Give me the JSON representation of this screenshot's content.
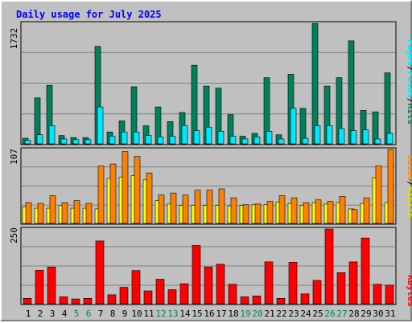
{
  "title": "Daily usage for July 2025",
  "colors": {
    "pages": "#00805c",
    "files": "#00e8ff",
    "hits": "#00805c",
    "sites": "#ff8000",
    "visits": "#ffff00",
    "kbytes": "#ff0000",
    "weekend_day": "#00805c",
    "weekday_day": "#000000",
    "title": "#0000ff"
  },
  "chart_data": [
    {
      "type": "bar",
      "name": "hits-files-pages",
      "ymax_label": "1732",
      "ymax": 1732,
      "legend": [
        "Pages",
        "Files",
        "Hits"
      ],
      "categories": [
        "1",
        "2",
        "3",
        "4",
        "5",
        "6",
        "7",
        "8",
        "9",
        "10",
        "11",
        "12",
        "13",
        "14",
        "15",
        "16",
        "17",
        "18",
        "19",
        "20",
        "21",
        "22",
        "23",
        "24",
        "25",
        "26",
        "27",
        "28",
        "29",
        "30",
        "31"
      ],
      "series": [
        {
          "name": "Hits",
          "values": [
            80,
            660,
            840,
            120,
            90,
            90,
            1400,
            170,
            330,
            820,
            260,
            530,
            320,
            450,
            1130,
            830,
            800,
            420,
            110,
            150,
            950,
            130,
            1000,
            510,
            1730,
            830,
            950,
            1480,
            480,
            460,
            1020
          ]
        },
        {
          "name": "Files",
          "values": [
            50,
            130,
            260,
            70,
            60,
            60,
            530,
            110,
            170,
            170,
            120,
            100,
            110,
            260,
            190,
            240,
            180,
            110,
            70,
            100,
            180,
            70,
            510,
            80,
            260,
            260,
            220,
            190,
            200,
            70,
            150
          ]
        },
        {
          "name": "Pages",
          "values": [
            40,
            60,
            40,
            40,
            40,
            40,
            70,
            50,
            50,
            50,
            40,
            40,
            40,
            50,
            60,
            60,
            50,
            40,
            40,
            40,
            60,
            40,
            60,
            40,
            60,
            60,
            40,
            60,
            60,
            30,
            60
          ]
        }
      ]
    },
    {
      "type": "bar",
      "name": "sites-visits",
      "ymax_label": "107",
      "ymax": 107,
      "legend": [
        "Sites",
        "Visits"
      ],
      "categories": [
        "1",
        "2",
        "3",
        "4",
        "5",
        "6",
        "7",
        "8",
        "9",
        "10",
        "11",
        "12",
        "13",
        "14",
        "15",
        "16",
        "17",
        "18",
        "19",
        "20",
        "21",
        "22",
        "23",
        "24",
        "25",
        "26",
        "27",
        "28",
        "29",
        "30",
        "31"
      ],
      "series": [
        {
          "name": "Visits",
          "values": [
            24,
            22,
            22,
            26,
            22,
            22,
            21,
            65,
            67,
            69,
            63,
            33,
            28,
            26,
            26,
            26,
            26,
            25,
            26,
            27,
            27,
            31,
            29,
            26,
            30,
            28,
            30,
            21,
            29,
            66,
            30
          ]
        },
        {
          "name": "Sites",
          "values": [
            30,
            29,
            40,
            30,
            33,
            29,
            83,
            86,
            104,
            97,
            73,
            41,
            44,
            41,
            48,
            48,
            50,
            37,
            27,
            28,
            32,
            40,
            37,
            30,
            34,
            32,
            39,
            20,
            37,
            83,
            107
          ]
        }
      ]
    },
    {
      "type": "bar",
      "name": "kbytes",
      "ymax_label": "250",
      "ymax": 250,
      "legend": [
        "KBytes"
      ],
      "categories": [
        "1",
        "2",
        "3",
        "4",
        "5",
        "6",
        "7",
        "8",
        "9",
        "10",
        "11",
        "12",
        "13",
        "14",
        "15",
        "16",
        "17",
        "18",
        "19",
        "20",
        "21",
        "22",
        "23",
        "24",
        "25",
        "26",
        "27",
        "28",
        "29",
        "30",
        "31"
      ],
      "series": [
        {
          "name": "KBytes",
          "values": [
            18,
            112,
            123,
            23,
            16,
            18,
            210,
            30,
            55,
            111,
            43,
            82,
            47,
            67,
            195,
            123,
            132,
            65,
            23,
            26,
            140,
            18,
            139,
            33,
            78,
            250,
            104,
            140,
            220,
            65,
            62
          ]
        }
      ]
    }
  ],
  "x_labels": [
    "1",
    "2",
    "3",
    "4",
    "5",
    "6",
    "7",
    "8",
    "9",
    "10",
    "11",
    "12",
    "13",
    "14",
    "15",
    "16",
    "17",
    "18",
    "19",
    "20",
    "21",
    "22",
    "23",
    "24",
    "25",
    "26",
    "27",
    "28",
    "29",
    "30",
    "31"
  ],
  "weekend_days": [
    5,
    6,
    12,
    13,
    19,
    20,
    26,
    27
  ]
}
